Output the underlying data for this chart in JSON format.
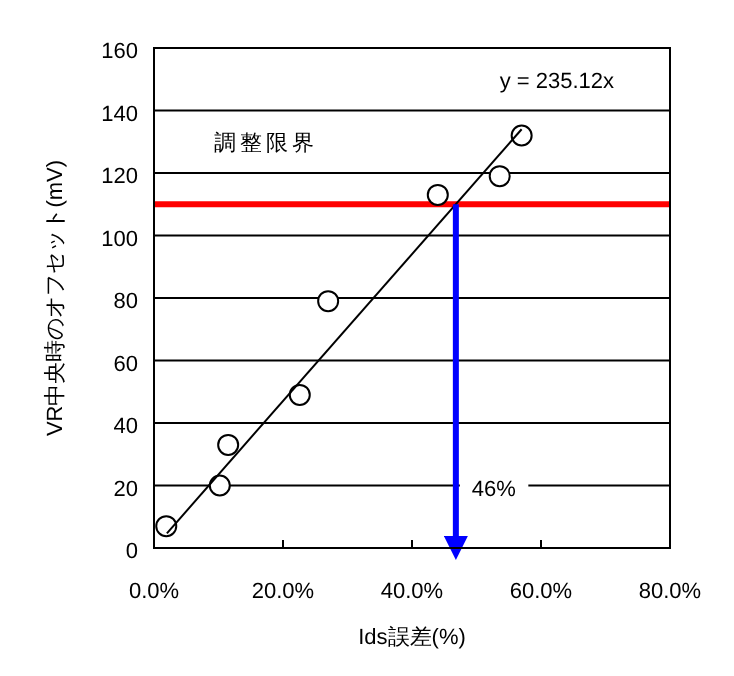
{
  "chart_data": {
    "type": "scatter",
    "xlabel": "Ids誤差(%)",
    "ylabel": "VR中央時のオフセット(mV)",
    "xlim": [
      0,
      0.8
    ],
    "xticks": [
      {
        "value": 0,
        "label": "0.0%"
      },
      {
        "value": 0.2,
        "label": "20.0%"
      },
      {
        "value": 0.4,
        "label": "40.0%"
      },
      {
        "value": 0.6,
        "label": "60.0%"
      },
      {
        "value": 0.8,
        "label": "80.0%"
      }
    ],
    "ylim": [
      0,
      160
    ],
    "yticks": [
      0,
      20,
      40,
      60,
      80,
      100,
      120,
      140,
      160
    ],
    "grid": "y",
    "series": [
      {
        "type": "scatter",
        "color": "#000000",
        "marker": "circle",
        "x": [
          0.019,
          0.102,
          0.115,
          0.226,
          0.27,
          0.44,
          0.536,
          0.57
        ],
        "values": [
          7,
          20,
          33,
          49,
          79,
          113,
          119,
          132
        ]
      },
      {
        "type": "line",
        "color": "#000000",
        "marker": "none",
        "line_style": "solid",
        "x": [
          0.02,
          0.57
        ],
        "values": [
          4.7,
          134
        ]
      },
      {
        "type": "line",
        "color": "#0000ff",
        "marker": "none",
        "line_style": "solid",
        "x": [
          0.468,
          0.468
        ],
        "values": [
          110,
          0
        ]
      }
    ],
    "ref_lines": [
      {
        "axis": "y",
        "value": 110,
        "label": "調整限界",
        "color": "#ff0000"
      }
    ],
    "annotations": [
      "y = 235.12x",
      {
        "text": "46%",
        "x": 0.468,
        "y": 20
      }
    ]
  }
}
